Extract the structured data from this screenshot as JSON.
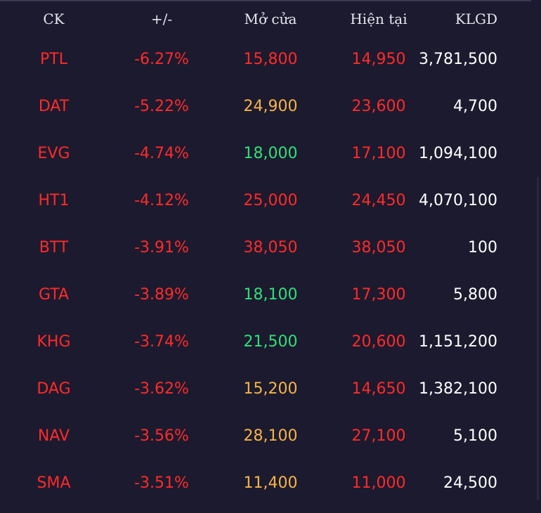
{
  "colors": {
    "background": "#1c1a2e",
    "header_text": "#e6e6ee",
    "down": "#ff2a2a",
    "up": "#2ee07a",
    "reference": "#f5b44a",
    "volume": "#ffffff"
  },
  "header": {
    "symbol": "CK",
    "change": "+/-",
    "open": "Mở cửa",
    "current": "Hiện tại",
    "volume": "KLGD"
  },
  "rows": [
    {
      "symbol": "PTL",
      "change": "-6.27%",
      "open": "15,800",
      "open_status": "down",
      "current": "14,950",
      "volume": "3,781,500"
    },
    {
      "symbol": "DAT",
      "change": "-5.22%",
      "open": "24,900",
      "open_status": "reference",
      "current": "23,600",
      "volume": "4,700"
    },
    {
      "symbol": "EVG",
      "change": "-4.74%",
      "open": "18,000",
      "open_status": "up",
      "current": "17,100",
      "volume": "1,094,100"
    },
    {
      "symbol": "HT1",
      "change": "-4.12%",
      "open": "25,000",
      "open_status": "down",
      "current": "24,450",
      "volume": "4,070,100"
    },
    {
      "symbol": "BTT",
      "change": "-3.91%",
      "open": "38,050",
      "open_status": "down",
      "current": "38,050",
      "volume": "100"
    },
    {
      "symbol": "GTA",
      "change": "-3.89%",
      "open": "18,100",
      "open_status": "up",
      "current": "17,300",
      "volume": "5,800"
    },
    {
      "symbol": "KHG",
      "change": "-3.74%",
      "open": "21,500",
      "open_status": "up",
      "current": "20,600",
      "volume": "1,151,200"
    },
    {
      "symbol": "DAG",
      "change": "-3.62%",
      "open": "15,200",
      "open_status": "reference",
      "current": "14,650",
      "volume": "1,382,100"
    },
    {
      "symbol": "NAV",
      "change": "-3.56%",
      "open": "28,100",
      "open_status": "reference",
      "current": "27,100",
      "volume": "5,100"
    },
    {
      "symbol": "SMA",
      "change": "-3.51%",
      "open": "11,400",
      "open_status": "reference",
      "current": "11,000",
      "volume": "24,500"
    }
  ]
}
